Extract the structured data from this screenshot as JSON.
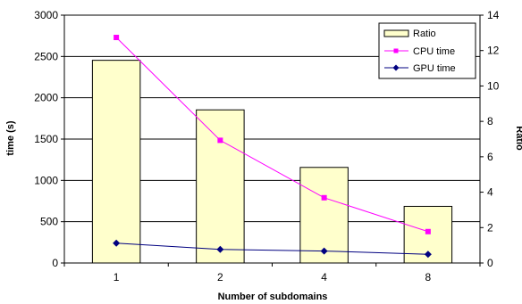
{
  "chart_data": {
    "type": "bar",
    "categories": [
      "1",
      "2",
      "4",
      "8"
    ],
    "xlabel": "Number of subdomains",
    "ylabel": "time (s)",
    "y2label": "Ratio",
    "ylim": [
      0,
      3000
    ],
    "y2lim": [
      0,
      14
    ],
    "yticks": [
      "0",
      "500",
      "1000",
      "1500",
      "2000",
      "2500",
      "3000"
    ],
    "y2ticks": [
      "0",
      "2",
      "4",
      "6",
      "8",
      "10",
      "12",
      "14"
    ],
    "grid": true,
    "legend_position": "top-right",
    "series": [
      {
        "name": "Ratio",
        "kind": "bar",
        "axis": "right",
        "values": [
          11.45,
          8.65,
          5.4,
          3.2
        ],
        "color": "#FFFFCC"
      },
      {
        "name": "CPU time",
        "kind": "line",
        "axis": "left",
        "marker": "square",
        "values": [
          2730,
          1485,
          790,
          380
        ],
        "color": "#FF00FF"
      },
      {
        "name": "GPU time",
        "kind": "line",
        "axis": "left",
        "marker": "diamond",
        "values": [
          240,
          165,
          145,
          105
        ],
        "color": "#000080"
      }
    ]
  }
}
